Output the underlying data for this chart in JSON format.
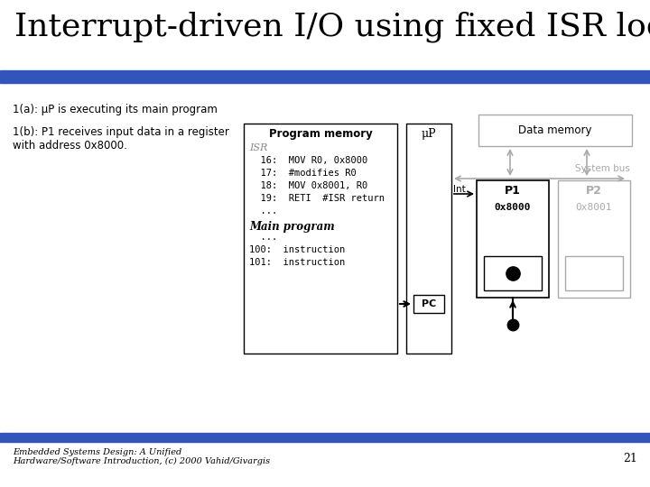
{
  "title": "Interrupt-driven I/O using fixed ISR location",
  "title_fontsize": 26,
  "bg_color": "#ffffff",
  "header_bar_color": "#3355bb",
  "footer_bar_color": "#3355bb",
  "left_text_line1": "1(a): μP is executing its main program",
  "left_text_line2a": "1(b): P1 receives input data in a register",
  "left_text_line2b": "with address 0x8000.",
  "program_memory_title": "Program memory",
  "isr_label": "ISR",
  "isr_lines": [
    "  16:  MOV R0, 0x8000",
    "  17:  #modifies R0",
    "  18:  MOV 0x8001, R0",
    "  19:  RETI  #ISR return",
    "  ..."
  ],
  "main_program_label": "Main program",
  "main_program_lines": [
    "  ...",
    "100:  instruction",
    "101:  instruction"
  ],
  "mu_p_label": "μP",
  "data_memory_label": "Data memory",
  "system_bus_label": "System bus",
  "int_label": "Int",
  "pc_label": "PC",
  "p1_label": "P1",
  "p2_label": "P2",
  "p1_addr": "0x8000",
  "p2_addr": "0x8001",
  "footer_text1": "Embedded Systems Design: A Unified",
  "footer_text2": "Hardware/Software Introduction, (c) 2000 Vahid/Givargis",
  "page_number": "21",
  "arrow_color": "#aaaaaa",
  "gray_color": "#aaaaaa",
  "dot_color": "#000000"
}
